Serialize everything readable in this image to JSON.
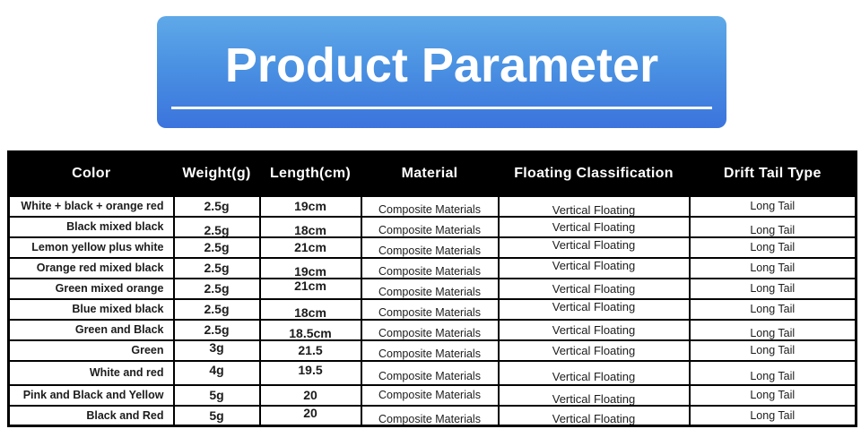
{
  "banner": {
    "title": "Product Parameter"
  },
  "colors": {
    "banner_gradient_top": "#5fa9e8",
    "banner_gradient_bottom": "#3b74dd",
    "banner_text": "#ffffff",
    "table_header_bg": "#000000",
    "table_header_text": "#ffffff",
    "table_border": "#000000",
    "table_text": "#1c1c1c",
    "page_bg": "#ffffff"
  },
  "table": {
    "columns": [
      "Color",
      "Weight(g)",
      "Length(cm)",
      "Material",
      "Floating Classification",
      "Drift Tail Type"
    ],
    "rows": [
      {
        "color": "White + black + orange red",
        "weight": "2.5g",
        "length": "19cm",
        "material": "Composite Materials",
        "floating": "Vertical Floating",
        "tail": "Long Tail"
      },
      {
        "color": "Black mixed black",
        "weight": "2.5g",
        "length": "18cm",
        "material": "Composite Materials",
        "floating": "Vertical Floating",
        "tail": "Long Tail"
      },
      {
        "color": "Lemon yellow plus white",
        "weight": "2.5g",
        "length": "21cm",
        "material": "Composite Materials",
        "floating": "Vertical Floating",
        "tail": "Long Tail"
      },
      {
        "color": "Orange red mixed black",
        "weight": "2.5g",
        "length": "19cm",
        "material": "Composite Materials",
        "floating": "Vertical Floating",
        "tail": "Long Tail"
      },
      {
        "color": "Green mixed orange",
        "weight": "2.5g",
        "length": "21cm",
        "material": "Composite Materials",
        "floating": "Vertical Floating",
        "tail": "Long Tail"
      },
      {
        "color": "Blue mixed black",
        "weight": "2.5g",
        "length": "18cm",
        "material": "Composite Materials",
        "floating": "Vertical Floating",
        "tail": "Long Tail"
      },
      {
        "color": "Green and Black",
        "weight": "2.5g",
        "length": "18.5cm",
        "material": "Composite Materials",
        "floating": "Vertical Floating",
        "tail": "Long Tail"
      },
      {
        "color": "Green",
        "weight": "3g",
        "length": "21.5",
        "material": "Composite Materials",
        "floating": "Vertical Floating",
        "tail": "Long Tail"
      },
      {
        "color": "White and red",
        "weight": "4g",
        "length": "19.5",
        "material": "Composite Materials",
        "floating": "Vertical Floating",
        "tail": "Long Tail"
      },
      {
        "color": "Pink and Black and Yellow",
        "weight": "5g",
        "length": "20",
        "material": "Composite Materials",
        "floating": "Vertical Floating",
        "tail": "Long Tail"
      },
      {
        "color": "Black and Red",
        "weight": "5g",
        "length": "20",
        "material": "Composite Materials",
        "floating": "Vertical Floating",
        "tail": "Long Tail"
      }
    ]
  }
}
